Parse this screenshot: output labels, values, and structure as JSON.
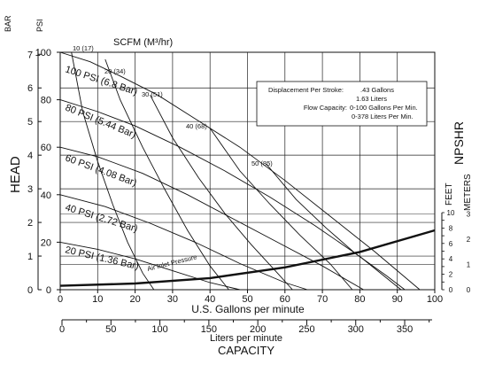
{
  "chart_data": {
    "type": "line",
    "title": "SCFM (M³/hr)",
    "xlabel": "U.S. Gallons per minute",
    "x2label": "Liters per minute",
    "caption": "CAPACITY",
    "ylabel": "HEAD",
    "ylabel_psi_unit": "PSI",
    "ylabel_bar_unit": "BAR",
    "xlim": [
      0,
      100
    ],
    "ylim_psi": [
      0,
      100
    ],
    "ylim_feet": [
      0,
      10
    ],
    "x_ticks": [
      "0",
      "10",
      "20",
      "30",
      "40",
      "50",
      "60",
      "70",
      "80",
      "90",
      "100"
    ],
    "x2_ticks": [
      "0",
      "50",
      "100",
      "150",
      "200",
      "250",
      "300",
      "350"
    ],
    "psi_ticks": [
      "0",
      "20",
      "40",
      "60",
      "80",
      "100"
    ],
    "bar_ticks": [
      "0",
      "1",
      "2",
      "3",
      "4",
      "5",
      "6",
      "7"
    ],
    "npshr_label": "NPSHR",
    "feet_label": "FEET",
    "meters_label": "METERS",
    "feet_ticks": [
      "0",
      "2",
      "4",
      "6",
      "8",
      "10"
    ],
    "meters_ticks": [
      "0",
      "1",
      "2",
      "3"
    ],
    "air_inlet_label": "Air Inlet Pressure",
    "info_box": [
      {
        "left": "Displacement Per Stroke:",
        "right": ".43 Gallons"
      },
      {
        "left": "",
        "right": "1.63 Liters"
      },
      {
        "left": "Flow Capacity:",
        "right": "0-100 Gallons Per Min."
      },
      {
        "left": "",
        "right": "0-378 Liters Per Min."
      }
    ],
    "pressure_series": [
      {
        "name": "100 PSI (6.8 Bar)",
        "x": [
          0,
          8,
          16,
          26,
          36,
          48,
          60,
          72,
          84,
          96
        ],
        "y": [
          100,
          96,
          90,
          82,
          72,
          60,
          46,
          31,
          16,
          0
        ]
      },
      {
        "name": "80 PSI (5.44 Bar)",
        "x": [
          0,
          10,
          20,
          32,
          44,
          56,
          68,
          80,
          91
        ],
        "y": [
          80,
          75,
          69,
          60,
          50,
          39,
          27,
          14,
          0
        ]
      },
      {
        "name": "60 PSI (4.08 Bar)",
        "x": [
          0,
          10,
          22,
          34,
          46,
          58,
          70,
          81
        ],
        "y": [
          60,
          56,
          49,
          40,
          30,
          20,
          10,
          0
        ]
      },
      {
        "name": "40 PSI (2.72 Bar)",
        "x": [
          0,
          12,
          24,
          36,
          48,
          60,
          66
        ],
        "y": [
          40,
          35,
          28,
          20,
          11,
          3,
          0
        ]
      },
      {
        "name": "20 PSI (1.36 Bar)",
        "x": [
          0,
          10,
          20,
          30,
          40,
          48
        ],
        "y": [
          20,
          17,
          13,
          8,
          3,
          0
        ]
      }
    ],
    "scfm_series": [
      {
        "name": "10 (17)",
        "x": [
          3,
          6,
          10,
          14,
          18,
          22,
          25
        ],
        "y": [
          100,
          75,
          54,
          36,
          20,
          7,
          0
        ]
      },
      {
        "name": "20 (34)",
        "x": [
          12,
          16,
          22,
          28,
          34,
          40,
          45
        ],
        "y": [
          97,
          80,
          60,
          42,
          25,
          10,
          0
        ]
      },
      {
        "name": "30 (51)",
        "x": [
          24,
          30,
          37,
          44,
          51,
          58,
          62
        ],
        "y": [
          82,
          64,
          47,
          32,
          19,
          7,
          0
        ]
      },
      {
        "name": "40 (68)",
        "x": [
          40,
          48,
          56,
          64,
          72,
          78
        ],
        "y": [
          68,
          50,
          36,
          23,
          11,
          0
        ]
      },
      {
        "name": "50 (85)",
        "x": [
          55,
          63,
          71,
          79,
          87,
          92
        ],
        "y": [
          53,
          38,
          26,
          15,
          6,
          0
        ]
      }
    ],
    "npshr_series": {
      "name": "NPSHR",
      "x": [
        0,
        20,
        40,
        60,
        80,
        100
      ],
      "y_feet": [
        0.5,
        0.8,
        1.5,
        2.9,
        4.9,
        7.7
      ]
    }
  }
}
